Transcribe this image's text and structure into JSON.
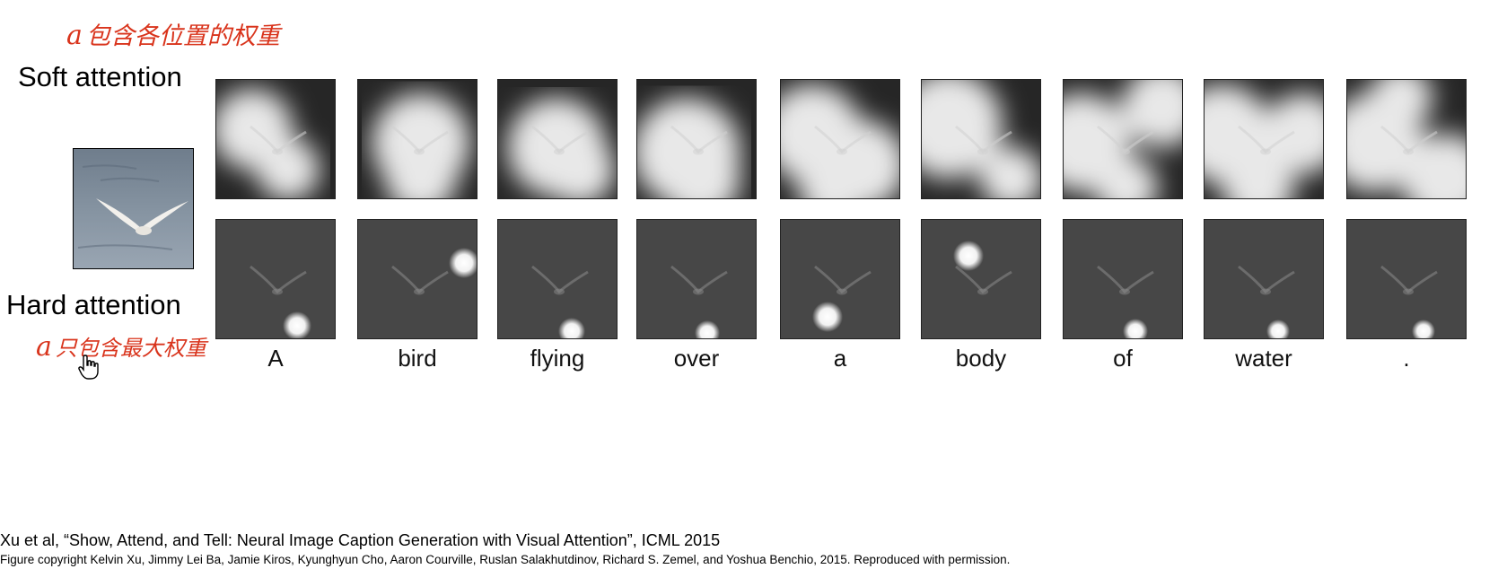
{
  "annotations": {
    "top_note": {
      "alpha": "a",
      "text": "包含各位置的权重"
    },
    "bottom_note": {
      "alpha": "a",
      "text": "只包含最大权重"
    }
  },
  "labels": {
    "soft": "Soft attention",
    "hard": "Hard attention"
  },
  "words": [
    "A",
    "bird",
    "flying",
    "over",
    "a",
    "body",
    "of",
    "water",
    "."
  ],
  "citation": "Xu et al, “Show, Attend, and Tell: Neural Image Caption Generation with Visual Attention”, ICML 2015",
  "copyright": "Figure copyright Kelvin Xu, Jimmy Lei Ba, Jamie Kiros, Kyunghyun Cho, Aaron Courville, Ruslan Salakhutdinov, Richard S. Zemel, and Yoshua Benchio, 2015. Reproduced with permission."
}
